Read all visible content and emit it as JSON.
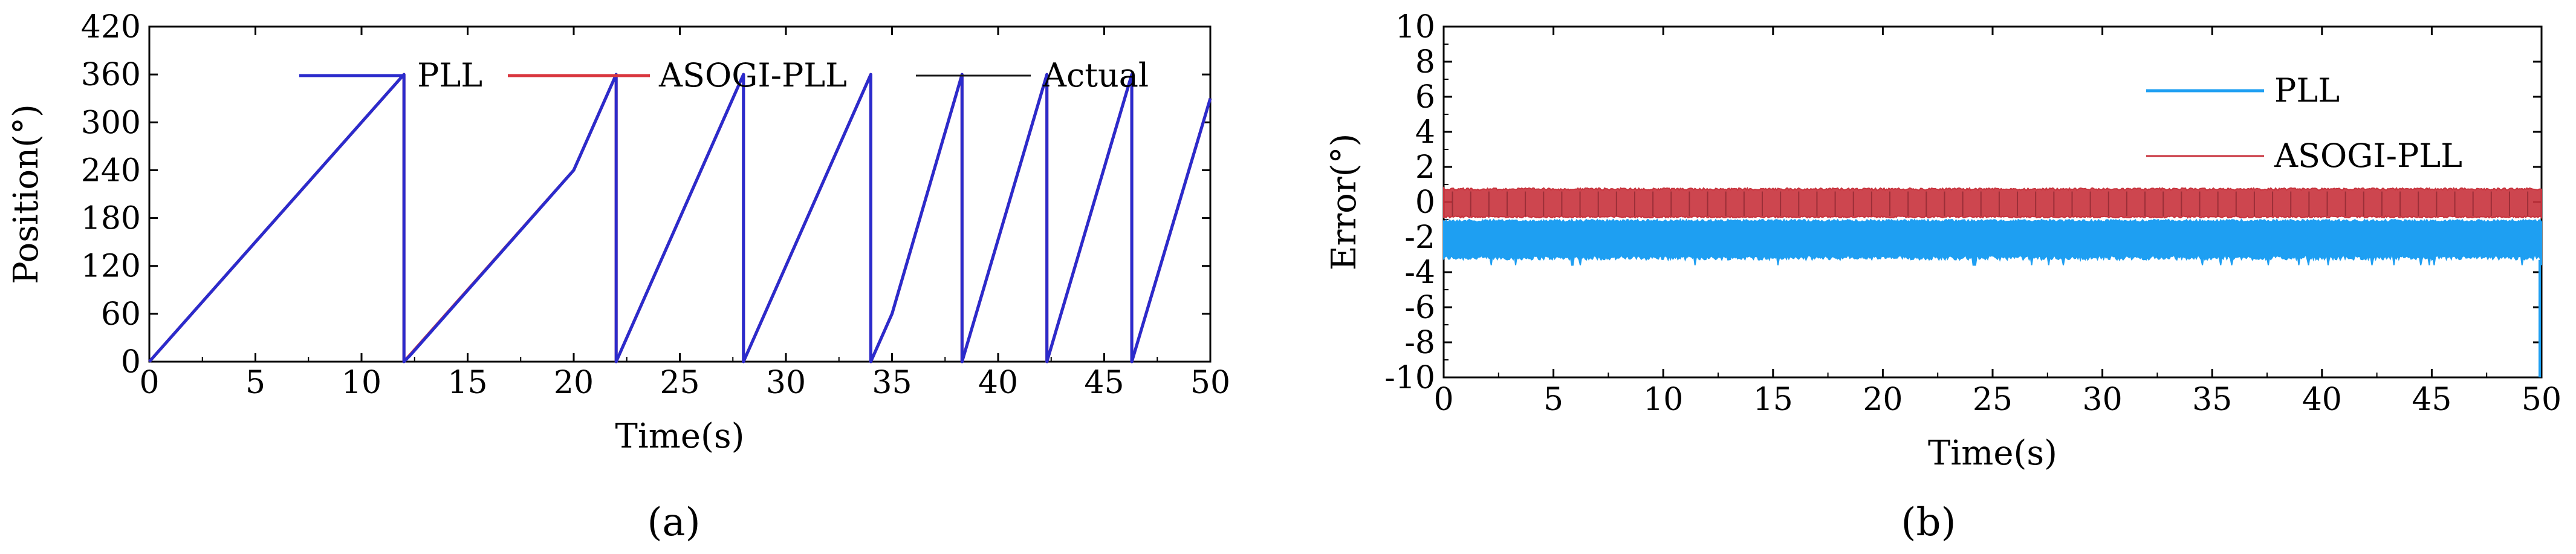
{
  "chart_data": [
    {
      "type": "line",
      "panel": "a",
      "caption": "(a)",
      "xlabel": "Time(s)",
      "ylabel": "Position(°)",
      "xlim": [
        0,
        50
      ],
      "ylim": [
        0,
        420
      ],
      "xticks": [
        "0",
        "5",
        "10",
        "15",
        "20",
        "25",
        "30",
        "35",
        "40",
        "45",
        "50"
      ],
      "yticks": [
        "0",
        "60",
        "120",
        "180",
        "240",
        "300",
        "360",
        "420"
      ],
      "legend": [
        "PLL",
        "ASOGI-PLL",
        "Actual"
      ],
      "legend_position": "top",
      "colors": {
        "PLL": "#2b2bcc",
        "ASOGI-PLL": "#d9363e",
        "Actual": "#1a1a1a"
      },
      "series": [
        {
          "name": "Actual",
          "x": [
            0,
            12.0,
            12.0,
            20.0,
            22.0,
            22.0,
            28.0,
            28.0,
            34.0,
            34.0,
            35.0,
            38.3,
            38.3,
            42.3,
            42.3,
            46.3,
            46.3,
            50.0
          ],
          "values": [
            0,
            360,
            0,
            240,
            360,
            0,
            360,
            0,
            360,
            0,
            60,
            360,
            0,
            360,
            0,
            360,
            0,
            330
          ]
        },
        {
          "name": "ASOGI-PLL",
          "x": [
            0,
            12.0,
            12.0,
            20.0,
            22.0,
            22.0,
            28.0,
            28.0,
            34.0,
            34.0,
            35.0,
            38.3,
            38.3,
            42.3,
            42.3,
            46.3,
            46.3,
            50.0
          ],
          "values": [
            0,
            360,
            0,
            240,
            360,
            0,
            360,
            0,
            360,
            0,
            60,
            360,
            0,
            360,
            0,
            360,
            0,
            330
          ]
        },
        {
          "name": "PLL",
          "x": [
            0,
            12.0,
            12.0,
            12.3,
            20.0,
            22.0,
            22.0,
            28.0,
            28.0,
            34.0,
            34.0,
            35.0,
            38.3,
            38.3,
            42.3,
            42.3,
            46.3,
            46.3,
            50.0
          ],
          "values": [
            0,
            360,
            0,
            8,
            240,
            360,
            0,
            360,
            0,
            360,
            0,
            60,
            360,
            0,
            360,
            0,
            360,
            0,
            330
          ]
        }
      ]
    },
    {
      "type": "line",
      "panel": "b",
      "caption": "(b)",
      "xlabel": "Time(s)",
      "ylabel": "Error(°)",
      "xlim": [
        0,
        50
      ],
      "ylim": [
        -10,
        10
      ],
      "xticks": [
        "0",
        "5",
        "10",
        "15",
        "20",
        "25",
        "30",
        "35",
        "40",
        "45",
        "50"
      ],
      "yticks": [
        "-10",
        "-8",
        "-6",
        "-4",
        "-2",
        "0",
        "2",
        "4",
        "6",
        "8",
        "10"
      ],
      "legend": [
        "PLL",
        "ASOGI-PLL"
      ],
      "legend_position": "top-right",
      "colors": {
        "PLL": "#1e9ff2",
        "ASOGI-PLL": "#c8323c"
      },
      "series": [
        {
          "name": "PLL",
          "band_min": -3.3,
          "band_max": -1.0,
          "spike_min": -3.6,
          "endpoint_at_50": -10
        },
        {
          "name": "ASOGI-PLL",
          "band_min": -0.9,
          "band_max": 0.8
        }
      ]
    }
  ]
}
